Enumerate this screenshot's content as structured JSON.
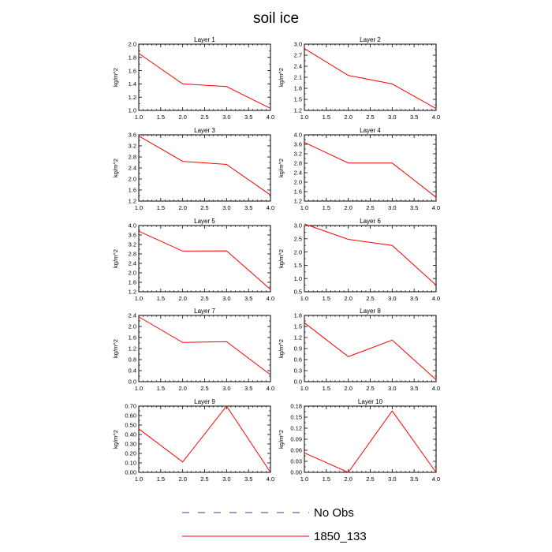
{
  "chart_data": {
    "type": "line",
    "title": "soil ice",
    "series_colors": {
      "1850_133": "#ff0000",
      "No Obs": "#3a3a9c"
    },
    "legend": [
      {
        "label": "No Obs",
        "style": "dashed",
        "color": "#3a3a9c"
      },
      {
        "label": "1850_133",
        "style": "solid",
        "color": "#ff0000"
      }
    ],
    "panels": [
      {
        "title": "Layer 1",
        "ylabel": "kg/m^2",
        "xlim": [
          1.0,
          4.0
        ],
        "xticks": [
          "1.0",
          "1.5",
          "2.0",
          "2.5",
          "3.0",
          "3.5",
          "4.0"
        ],
        "ylim": [
          1.0,
          2.0
        ],
        "yticks": [
          "1.0",
          "1.2",
          "1.4",
          "1.6",
          "1.8",
          "2.0"
        ],
        "series": [
          {
            "name": "1850_133",
            "x": [
              1,
              2,
              3,
              4
            ],
            "y": [
              1.86,
              1.4,
              1.36,
              1.03
            ]
          }
        ]
      },
      {
        "title": "Layer 2",
        "ylabel": "kg/m^2",
        "xlim": [
          1.0,
          4.0
        ],
        "xticks": [
          "1.0",
          "1.5",
          "2.0",
          "2.5",
          "3.0",
          "3.5",
          "4.0"
        ],
        "ylim": [
          1.2,
          3.0
        ],
        "yticks": [
          "1.2",
          "1.5",
          "1.8",
          "2.1",
          "2.4",
          "2.7",
          "3.0"
        ],
        "series": [
          {
            "name": "1850_133",
            "x": [
              1,
              2,
              3,
              4
            ],
            "y": [
              2.88,
              2.15,
              1.92,
              1.25
            ]
          }
        ]
      },
      {
        "title": "Layer 3",
        "ylabel": "kg/m^2",
        "xlim": [
          1.0,
          4.0
        ],
        "xticks": [
          "1.0",
          "1.5",
          "2.0",
          "2.5",
          "3.0",
          "3.5",
          "4.0"
        ],
        "ylim": [
          1.2,
          3.6
        ],
        "yticks": [
          "1.2",
          "1.6",
          "2.0",
          "2.4",
          "2.8",
          "3.2",
          "3.6"
        ],
        "series": [
          {
            "name": "1850_133",
            "x": [
              1,
              2,
              3,
              4
            ],
            "y": [
              3.56,
              2.64,
              2.53,
              1.42
            ]
          }
        ]
      },
      {
        "title": "Layer 4",
        "ylabel": "kg/m^2",
        "xlim": [
          1.0,
          4.0
        ],
        "xticks": [
          "1.0",
          "1.5",
          "2.0",
          "2.5",
          "3.0",
          "3.5",
          "4.0"
        ],
        "ylim": [
          1.2,
          4.0
        ],
        "yticks": [
          "1.2",
          "1.6",
          "2.0",
          "2.4",
          "2.8",
          "3.2",
          "3.6",
          "4.0"
        ],
        "series": [
          {
            "name": "1850_133",
            "x": [
              1,
              2,
              3,
              4
            ],
            "y": [
              3.68,
              2.81,
              2.81,
              1.36
            ]
          }
        ]
      },
      {
        "title": "Layer 5",
        "ylabel": "kg/m^2",
        "xlim": [
          1.0,
          4.0
        ],
        "xticks": [
          "1.0",
          "1.5",
          "2.0",
          "2.5",
          "3.0",
          "3.5",
          "4.0"
        ],
        "ylim": [
          1.2,
          4.0
        ],
        "yticks": [
          "1.2",
          "1.6",
          "2.0",
          "2.4",
          "2.8",
          "3.2",
          "3.6",
          "4.0"
        ],
        "series": [
          {
            "name": "1850_133",
            "x": [
              1,
              2,
              3,
              4
            ],
            "y": [
              3.76,
              2.92,
              2.93,
              1.3
            ]
          }
        ]
      },
      {
        "title": "Layer 6",
        "ylabel": "kg/m^2",
        "xlim": [
          1.0,
          4.0
        ],
        "xticks": [
          "1.0",
          "1.5",
          "2.0",
          "2.5",
          "3.0",
          "3.5",
          "4.0"
        ],
        "ylim": [
          0.5,
          3.0
        ],
        "yticks": [
          "0.5",
          "1.0",
          "1.5",
          "2.0",
          "2.5",
          "3.0"
        ],
        "series": [
          {
            "name": "1850_133",
            "x": [
              1,
              2,
              3,
              4
            ],
            "y": [
              3.06,
              2.48,
              2.25,
              0.75
            ]
          }
        ]
      },
      {
        "title": "Layer 7",
        "ylabel": "kg/m^2",
        "xlim": [
          1.0,
          4.0
        ],
        "xticks": [
          "1.0",
          "1.5",
          "2.0",
          "2.5",
          "3.0",
          "3.5",
          "4.0"
        ],
        "ylim": [
          0.0,
          2.4
        ],
        "yticks": [
          "0.0",
          "0.4",
          "0.8",
          "1.2",
          "1.6",
          "2.0",
          "2.4"
        ],
        "series": [
          {
            "name": "1850_133",
            "x": [
              1,
              2,
              3,
              4
            ],
            "y": [
              2.35,
              1.42,
              1.45,
              0.25
            ]
          }
        ]
      },
      {
        "title": "Layer 8",
        "ylabel": "kg/m^2",
        "xlim": [
          1.0,
          4.0
        ],
        "xticks": [
          "1.0",
          "1.5",
          "2.0",
          "2.5",
          "3.0",
          "3.5",
          "4.0"
        ],
        "ylim": [
          0.0,
          1.8
        ],
        "yticks": [
          "0.0",
          "0.3",
          "0.6",
          "0.9",
          "1.2",
          "1.5",
          "1.8"
        ],
        "series": [
          {
            "name": "1850_133",
            "x": [
              1,
              2,
              3,
              4
            ],
            "y": [
              1.6,
              0.68,
              1.13,
              0.05
            ]
          }
        ]
      },
      {
        "title": "Layer 9",
        "ylabel": "kg/m^2",
        "xlim": [
          1.0,
          4.0
        ],
        "xticks": [
          "1.0",
          "1.5",
          "2.0",
          "2.5",
          "3.0",
          "3.5",
          "4.0"
        ],
        "ylim": [
          0.0,
          0.7
        ],
        "yticks": [
          "0.00",
          "0.10",
          "0.20",
          "0.30",
          "0.40",
          "0.50",
          "0.60",
          "0.70"
        ],
        "series": [
          {
            "name": "1850_133",
            "x": [
              1,
              2,
              3,
              4
            ],
            "y": [
              0.46,
              0.11,
              0.7,
              0.0
            ]
          }
        ]
      },
      {
        "title": "Layer 10",
        "ylabel": "kg/m^2",
        "xlim": [
          1.0,
          4.0
        ],
        "xticks": [
          "1.0",
          "1.5",
          "2.0",
          "2.5",
          "3.0",
          "3.5",
          "4.0"
        ],
        "ylim": [
          0.0,
          0.18
        ],
        "yticks": [
          "0.00",
          "0.03",
          "0.06",
          "0.09",
          "0.12",
          "0.15",
          "0.18"
        ],
        "series": [
          {
            "name": "1850_133",
            "x": [
              1,
              2,
              3,
              4
            ],
            "y": [
              0.053,
              0.0,
              0.167,
              0.0
            ]
          }
        ]
      }
    ]
  }
}
